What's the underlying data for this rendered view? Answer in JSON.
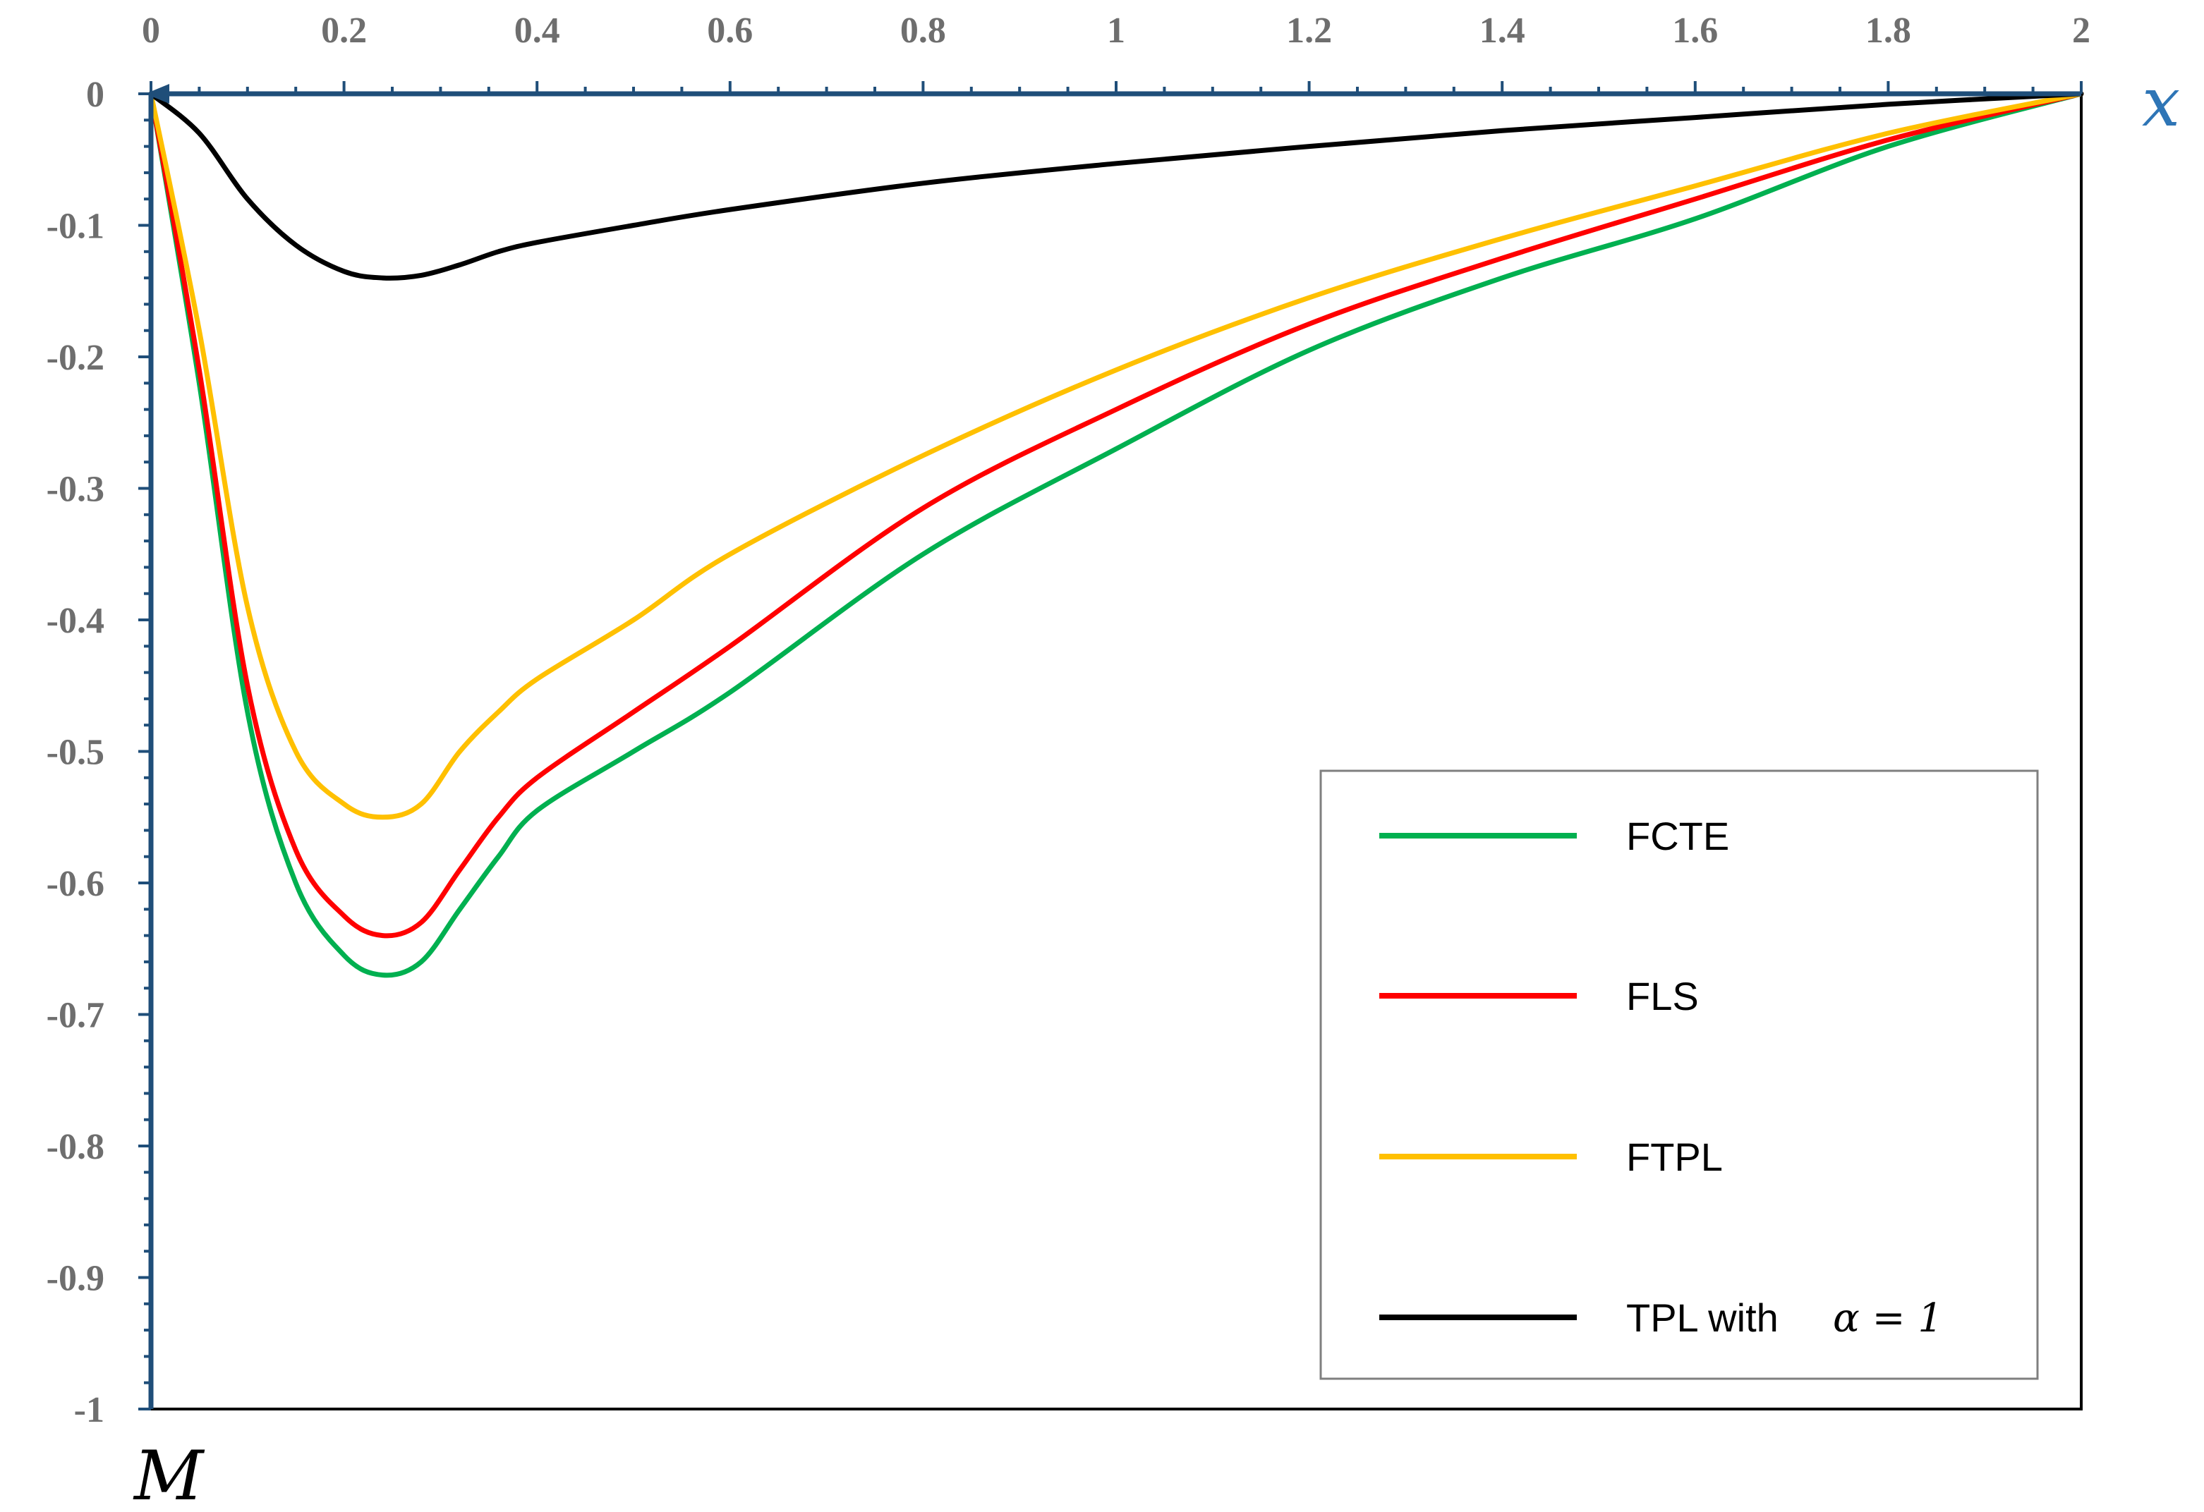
{
  "chart_data": {
    "type": "line",
    "title": "",
    "xlabel": "x",
    "ylabel": "M",
    "xlim": [
      0,
      2
    ],
    "ylim": [
      -1,
      0
    ],
    "x_ticks": [
      "0",
      "0.2",
      "0.4",
      "0.6",
      "0.8",
      "1",
      "1.2",
      "1.4",
      "1.6",
      "1.8",
      "2"
    ],
    "y_ticks": [
      "0",
      "-0.1",
      "-0.2",
      "-0.3",
      "-0.4",
      "-0.5",
      "-0.6",
      "-0.7",
      "-0.8",
      "-0.9",
      "-1"
    ],
    "x_axis_position": "top",
    "grid": false,
    "legend_position": "bottom-right",
    "series": [
      {
        "name": "FCTE",
        "color": "#00b050",
        "x": [
          0,
          0.05,
          0.1,
          0.15,
          0.2,
          0.24,
          0.28,
          0.32,
          0.36,
          0.4,
          0.5,
          0.6,
          0.8,
          1.0,
          1.2,
          1.4,
          1.6,
          1.8,
          2.0
        ],
        "y": [
          0,
          -0.22,
          -0.47,
          -0.6,
          -0.655,
          -0.67,
          -0.66,
          -0.62,
          -0.58,
          -0.545,
          -0.5,
          -0.455,
          -0.35,
          -0.27,
          -0.195,
          -0.14,
          -0.095,
          -0.04,
          0
        ]
      },
      {
        "name": "FLS",
        "color": "#ff0000",
        "x": [
          0,
          0.05,
          0.1,
          0.15,
          0.2,
          0.24,
          0.28,
          0.32,
          0.36,
          0.4,
          0.5,
          0.6,
          0.8,
          1.0,
          1.2,
          1.4,
          1.6,
          1.8,
          2.0
        ],
        "y": [
          0,
          -0.21,
          -0.45,
          -0.575,
          -0.625,
          -0.64,
          -0.63,
          -0.59,
          -0.55,
          -0.52,
          -0.47,
          -0.42,
          -0.315,
          -0.24,
          -0.175,
          -0.125,
          -0.08,
          -0.035,
          0
        ]
      },
      {
        "name": "FTPL",
        "color": "#ffc000",
        "x": [
          0,
          0.05,
          0.1,
          0.15,
          0.2,
          0.24,
          0.28,
          0.32,
          0.36,
          0.4,
          0.5,
          0.6,
          0.8,
          1.0,
          1.2,
          1.4,
          1.6,
          1.8,
          2.0
        ],
        "y": [
          0,
          -0.18,
          -0.39,
          -0.5,
          -0.54,
          -0.55,
          -0.54,
          -0.5,
          -0.47,
          -0.445,
          -0.4,
          -0.35,
          -0.275,
          -0.21,
          -0.155,
          -0.11,
          -0.07,
          -0.03,
          0
        ]
      },
      {
        "name": "TPL with",
        "symbol": "α = 1",
        "color": "#000000",
        "x": [
          0,
          0.05,
          0.1,
          0.15,
          0.2,
          0.24,
          0.28,
          0.32,
          0.36,
          0.4,
          0.5,
          0.6,
          0.8,
          1.0,
          1.2,
          1.4,
          1.6,
          1.8,
          2.0
        ],
        "y": [
          0,
          -0.03,
          -0.08,
          -0.115,
          -0.135,
          -0.14,
          -0.138,
          -0.13,
          -0.12,
          -0.113,
          -0.1,
          -0.088,
          -0.068,
          -0.053,
          -0.04,
          -0.028,
          -0.018,
          -0.008,
          0
        ]
      }
    ]
  },
  "colors": {
    "axis": "#1f4e79",
    "tick_label": "#6e6e6e",
    "x_title": "#2e75b6",
    "y_title": "#000000",
    "legend_border": "#7f7f7f"
  }
}
